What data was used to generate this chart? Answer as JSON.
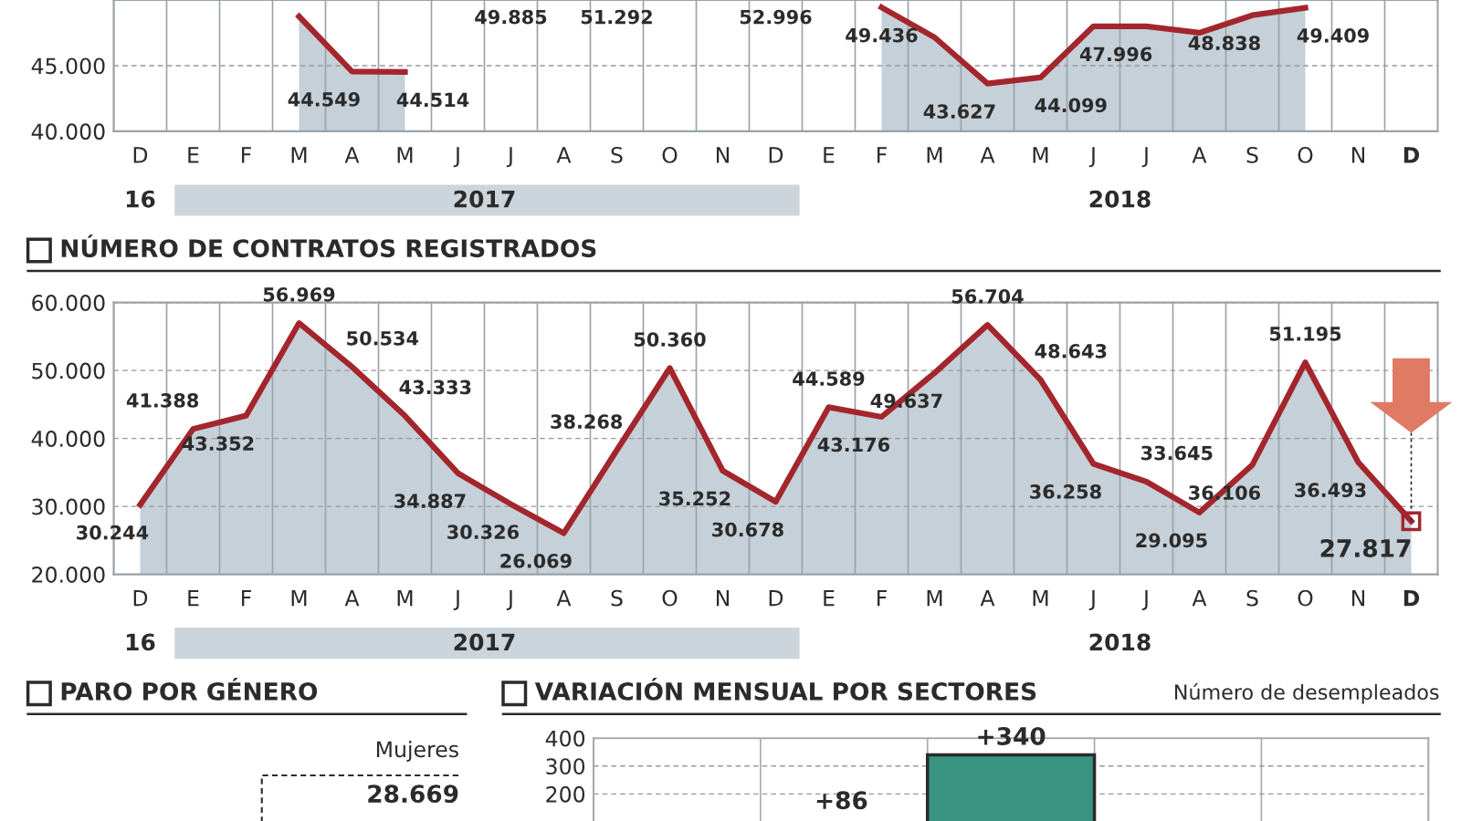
{
  "chart_data": [
    {
      "type": "area",
      "categories": [
        "D",
        "E",
        "F",
        "M",
        "A",
        "M",
        "J",
        "J",
        "A",
        "S",
        "O",
        "N",
        "D",
        "E",
        "F",
        "M",
        "A",
        "M",
        "J",
        "J",
        "A",
        "S",
        "O",
        "N",
        "D"
      ],
      "ylim": [
        40000,
        50000
      ],
      "yticks": [
        {
          "value": 40000,
          "label": "40.000"
        },
        {
          "value": 45000,
          "label": "45.000"
        }
      ],
      "grid": "x",
      "ref_lines": [
        {
          "axis": "y",
          "value": 45000,
          "label": null,
          "color": "#999999",
          "line_style": "dashed"
        }
      ],
      "annotations": [
        "16",
        "2017",
        "2018",
        "49.885",
        "51.292",
        "52.996"
      ],
      "series": [
        {
          "type": "area",
          "color": "#a3262c",
          "values": [
            null,
            null,
            null,
            48750,
            44549,
            44514,
            null,
            null,
            null,
            null,
            null,
            null,
            null,
            null,
            49436,
            47150,
            43627,
            44099,
            48000,
            47996,
            47500,
            48838,
            49409,
            null,
            null
          ],
          "value_labels": [
            null,
            null,
            null,
            null,
            "44.549",
            "44.514",
            null,
            null,
            null,
            null,
            null,
            null,
            null,
            null,
            "49.436",
            null,
            "43.627",
            "44.099",
            null,
            "47.996",
            null,
            "48.838",
            "49.409",
            null,
            null
          ]
        }
      ]
    },
    {
      "type": "area",
      "title": "NÚMERO DE CONTRATOS REGISTRADOS",
      "categories": [
        "D",
        "E",
        "F",
        "M",
        "A",
        "M",
        "J",
        "J",
        "A",
        "S",
        "O",
        "N",
        "D",
        "E",
        "F",
        "M",
        "A",
        "M",
        "J",
        "J",
        "A",
        "S",
        "O",
        "N",
        "D"
      ],
      "ylim": [
        20000,
        60000
      ],
      "yticks": [
        {
          "value": 20000,
          "label": "20.000"
        },
        {
          "value": 30000,
          "label": "30.000"
        },
        {
          "value": 40000,
          "label": "40.000"
        },
        {
          "value": 50000,
          "label": "50.000"
        },
        {
          "value": 60000,
          "label": "60.000"
        }
      ],
      "grid": true,
      "annotations": [
        "16",
        "2017",
        "2018"
      ],
      "series": [
        {
          "type": "area",
          "color": "#a3262c",
          "values": [
            30244,
            41388,
            43352,
            56969,
            50534,
            43333,
            34887,
            30326,
            26069,
            38268,
            50360,
            35252,
            30678,
            44589,
            43176,
            49637,
            56704,
            48643,
            36258,
            33645,
            29095,
            36106,
            51195,
            36493,
            27817
          ],
          "value_labels": [
            "30.244",
            "41.388",
            "43.352",
            "56.969",
            "50.534",
            "43.333",
            "34.887",
            "30.326",
            "26.069",
            "38.268",
            "50.360",
            "35.252",
            "30.678",
            "44.589",
            "43.176",
            "49.637",
            "56.704",
            "48.643",
            "36.258",
            "33.645",
            "29.095",
            "36.106",
            "51.195",
            "36.493",
            "27.817"
          ]
        }
      ]
    },
    {
      "type": "other",
      "title": "PARO POR GÉNERO",
      "annotations": [
        "Mujeres",
        "28.669"
      ]
    },
    {
      "type": "bar",
      "title": "VARIACIÓN MENSUAL POR SECTORES",
      "subtitle": "Número de desempleados",
      "categories": [
        null,
        null,
        null,
        null,
        null
      ],
      "values": [
        null,
        null,
        340,
        null,
        null
      ],
      "value_labels": [
        null,
        null,
        "+340",
        null,
        null
      ],
      "annotations": [
        "+86"
      ],
      "color": "#3a9482",
      "ylim": [
        0,
        400
      ],
      "yticks": [
        200,
        300,
        400
      ],
      "grid": true
    }
  ]
}
